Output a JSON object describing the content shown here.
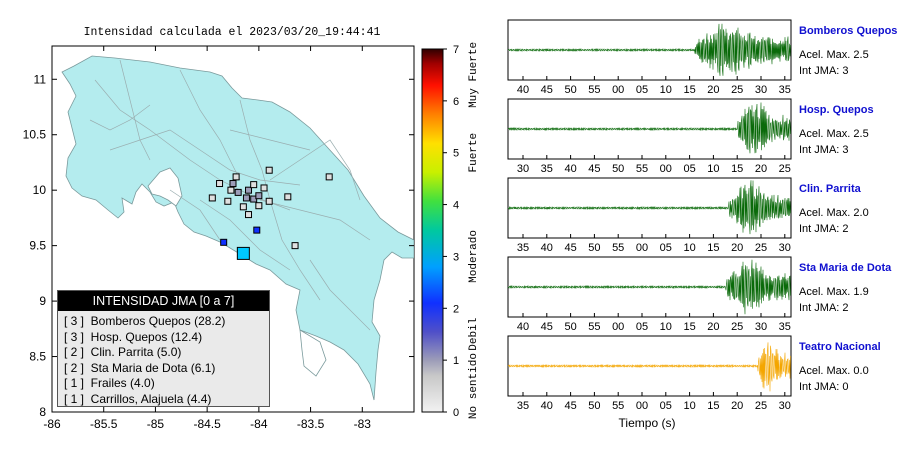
{
  "chart_data": [
    {
      "type": "map",
      "title": "Intensidad calculada el 2023/03/20_19:44:41",
      "xlim": [
        -86,
        -82.5
      ],
      "ylim": [
        8,
        11.3
      ],
      "x_ticks": [
        "-86",
        "-85.5",
        "-85",
        "-84.5",
        "-84",
        "-83.5",
        "-83"
      ],
      "y_ticks": [
        "8",
        "8.5",
        "9",
        "9.5",
        "10",
        "10.5",
        "11"
      ],
      "colorbar": {
        "ticks": [
          "0",
          "1",
          "2",
          "3",
          "4",
          "5",
          "6",
          "7"
        ],
        "categories": [
          "No sentido",
          "Debil",
          "Moderado",
          "Fuerte",
          "Muy Fuerte"
        ]
      },
      "legend": {
        "title": "INTENSIDAD JMA [0 a 7]",
        "entries": [
          "[ 3 ]  Bomberos Quepos (28.2)",
          "[ 3 ]  Hosp. Quepos (12.4)",
          "[ 2 ]  Clin. Parrita (5.0)",
          "[ 2 ]  Sta Maria de Dota (6.1)",
          "[ 1 ]  Frailes (4.0)",
          "[ 1 ]  Carrillos, Alajuela (4.4)"
        ]
      },
      "stations": [
        {
          "lon": -84.15,
          "lat": 9.43,
          "intensity": 3
        },
        {
          "lon": -84.34,
          "lat": 9.53,
          "intensity": 2
        },
        {
          "lon": -84.02,
          "lat": 9.64,
          "intensity": 2
        },
        {
          "lon": -84.12,
          "lat": 9.93,
          "intensity": 1
        },
        {
          "lon": -84.05,
          "lat": 9.92,
          "intensity": 1
        },
        {
          "lon": -84.2,
          "lat": 9.98,
          "intensity": 1
        },
        {
          "lon": -84.25,
          "lat": 10.06,
          "intensity": 1
        },
        {
          "lon": -84.1,
          "lat": 10.0,
          "intensity": 1
        },
        {
          "lon": -84.0,
          "lat": 9.95,
          "intensity": 1
        },
        {
          "lon": -83.95,
          "lat": 10.02,
          "intensity": 0
        },
        {
          "lon": -84.3,
          "lat": 9.9,
          "intensity": 0
        },
        {
          "lon": -84.15,
          "lat": 9.85,
          "intensity": 0
        },
        {
          "lon": -83.9,
          "lat": 9.9,
          "intensity": 0
        },
        {
          "lon": -83.72,
          "lat": 9.94,
          "intensity": 0
        },
        {
          "lon": -84.22,
          "lat": 10.12,
          "intensity": 0
        },
        {
          "lon": -84.45,
          "lat": 9.93,
          "intensity": 0
        },
        {
          "lon": -84.05,
          "lat": 10.05,
          "intensity": 0
        },
        {
          "lon": -83.65,
          "lat": 9.5,
          "intensity": 0
        },
        {
          "lon": -83.32,
          "lat": 10.12,
          "intensity": 0
        },
        {
          "lon": -83.9,
          "lat": 10.18,
          "intensity": 0
        },
        {
          "lon": -84.38,
          "lat": 10.06,
          "intensity": 0
        },
        {
          "lon": -84.1,
          "lat": 9.78,
          "intensity": 0
        },
        {
          "lon": -84.27,
          "lat": 10.0,
          "intensity": 0
        },
        {
          "lon": -84.0,
          "lat": 9.86,
          "intensity": 0
        }
      ]
    },
    {
      "type": "line",
      "xlabel": "Tiempo (s)",
      "traces": [
        {
          "name": "Bomberos Quepos",
          "acel": "Acel. Max. 2.5",
          "jma": "Int JMA: 3",
          "color": "#0a6a0a",
          "ticks": [
            "40",
            "45",
            "50",
            "55",
            "00",
            "05",
            "10",
            "15",
            "20",
            "25",
            "30",
            "35"
          ],
          "onset": 0.66
        },
        {
          "name": "Hosp. Quepos",
          "acel": "Acel. Max. 2.5",
          "jma": "Int JMA: 3",
          "color": "#0a6a0a",
          "ticks": [
            "30",
            "35",
            "40",
            "45",
            "50",
            "55",
            "00",
            "05",
            "10",
            "15",
            "20",
            "25"
          ],
          "onset": 0.81
        },
        {
          "name": "Clin. Parrita",
          "acel": "Acel. Max. 2.0",
          "jma": "Int JMA: 2",
          "color": "#0a6a0a",
          "ticks": [
            "35",
            "40",
            "45",
            "50",
            "55",
            "00",
            "05",
            "10",
            "15",
            "20",
            "25",
            "30"
          ],
          "onset": 0.78
        },
        {
          "name": "Sta Maria de Dota",
          "acel": "Acel. Max. 1.9",
          "jma": "Int JMA: 2",
          "color": "#0a6a0a",
          "ticks": [
            "40",
            "45",
            "50",
            "55",
            "00",
            "05",
            "10",
            "15",
            "20",
            "25",
            "30",
            "35"
          ],
          "onset": 0.77
        },
        {
          "name": "Teatro Nacional",
          "acel": "Acel. Max. 0.0",
          "jma": "Int JMA: 0",
          "color": "#f4a600",
          "ticks": [
            "35",
            "40",
            "45",
            "50",
            "55",
            "00",
            "05",
            "10",
            "15",
            "20",
            "25",
            "30"
          ],
          "onset": 0.88
        }
      ]
    }
  ]
}
